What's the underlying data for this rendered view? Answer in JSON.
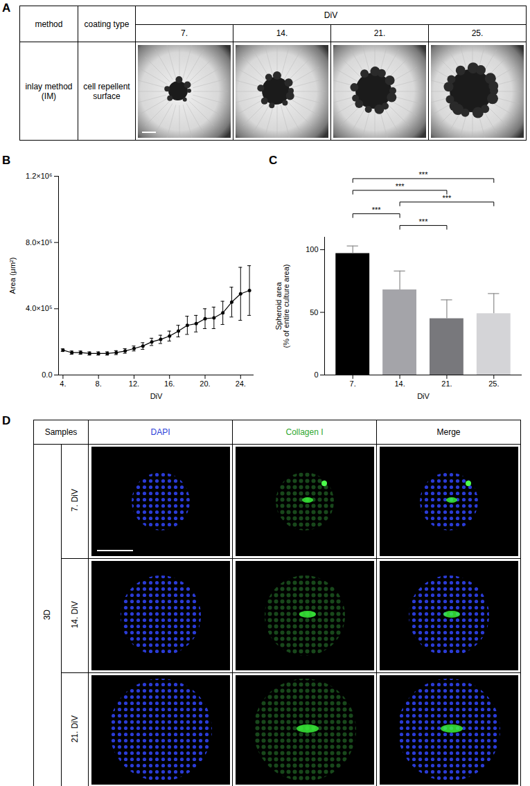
{
  "panel_A": {
    "title": "A",
    "table": {
      "header": [
        "method",
        "coating type"
      ],
      "group": "DiV",
      "columns": [
        "7.",
        "14.",
        "21.",
        "25."
      ],
      "rows": [
        [
          "inlay method (IM)",
          "cell repellent surface"
        ]
      ]
    }
  },
  "chart_data": [
    {
      "title": "B",
      "type": "line",
      "x": [
        4,
        5,
        6,
        7,
        8,
        9,
        10,
        11,
        12,
        13,
        14,
        15,
        16,
        17,
        18,
        19,
        20,
        21,
        22,
        23,
        24,
        25
      ],
      "values": [
        150000,
        135000,
        135000,
        130000,
        130000,
        130000,
        135000,
        145000,
        160000,
        175000,
        200000,
        215000,
        235000,
        265000,
        300000,
        310000,
        340000,
        345000,
        375000,
        440000,
        490000,
        510000
      ],
      "errors": [
        8000,
        10000,
        10000,
        10000,
        10000,
        10000,
        12000,
        14000,
        15000,
        20000,
        22000,
        25000,
        30000,
        35000,
        55000,
        50000,
        60000,
        65000,
        70000,
        90000,
        160000,
        150000
      ],
      "color": "#000000",
      "marker": "circle",
      "xlabel": "DiV",
      "ylabel": "Area (μm²)",
      "xlim": [
        3.5,
        25.5
      ],
      "xticks": [
        {
          "value": 4,
          "label": "4."
        },
        {
          "value": 8,
          "label": "8."
        },
        {
          "value": 12,
          "label": "12."
        },
        {
          "value": 16,
          "label": "16."
        },
        {
          "value": 20,
          "label": "20."
        },
        {
          "value": 24,
          "label": "24."
        }
      ],
      "ylim": [
        0,
        1200000
      ],
      "yticks": [
        {
          "value": 0,
          "label": "0.0"
        },
        {
          "value": 400000,
          "label": "4.0×10⁵"
        },
        {
          "value": 800000,
          "label": "8.0×10⁵"
        },
        {
          "value": 1200000,
          "label": "1.2×10⁶"
        }
      ]
    },
    {
      "title": "C",
      "type": "bar",
      "categories": [
        "7.",
        "14.",
        "21.",
        "25."
      ],
      "values": [
        97,
        68,
        45,
        49
      ],
      "errors": [
        6,
        15,
        15,
        16
      ],
      "colors": [
        "#000000",
        "#a4a4a9",
        "#78787c",
        "#d4d4d7"
      ],
      "xlabel": "DiV",
      "ylabel": "Spheroid area\n(% of entire culture area)",
      "ylim": [
        0,
        110
      ],
      "yticks": [
        0,
        50,
        100
      ],
      "significance": [
        {
          "pair": [
            "7.",
            "25."
          ],
          "label": "***"
        },
        {
          "pair": [
            "7.",
            "21."
          ],
          "label": "***"
        },
        {
          "pair": [
            "14.",
            "25."
          ],
          "label": "***"
        },
        {
          "pair": [
            "7.",
            "14."
          ],
          "label": "***"
        },
        {
          "pair": [
            "14.",
            "21."
          ],
          "label": "***"
        }
      ]
    }
  ],
  "panel_D": {
    "title": "D",
    "table": {
      "header": [
        "Samples",
        "DAPI",
        "Collagen I",
        "Merge"
      ],
      "header_colors": [
        "#000000",
        "#2b3fd9",
        "#2fa82f",
        "#000000"
      ],
      "group": "3D",
      "rows": [
        "7. DiV",
        "14. DiV",
        "21. DiV"
      ]
    }
  }
}
